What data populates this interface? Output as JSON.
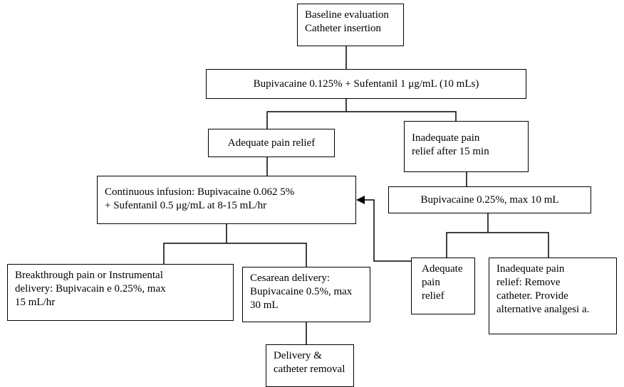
{
  "nodes": [
    {
      "lines": [
        "Baseline evaluation",
        "Catheter insertion"
      ]
    },
    {
      "lines": [
        "Bupivacaine 0.125% + Sufentanil 1 μg/mL (10 mLs)"
      ]
    },
    {
      "lines": [
        "Adequate pain relief"
      ]
    },
    {
      "lines": [
        "Inadequate pain",
        "relief after 15 min"
      ]
    },
    {
      "lines": [
        "Continuous infusion: Bupivacaine 0.062 5%",
        "+ Sufentanil 0.5 μg/mL at 8-15 mL/hr"
      ]
    },
    {
      "lines": [
        "Bupivacaine 0.25%, max 10 mL"
      ]
    },
    {
      "lines": [
        "Breakthrough pain or Instrumental",
        "delivery: Bupivacain e 0.25%, max",
        "15 mL/hr"
      ]
    },
    {
      "lines": [
        "Cesarean delivery:",
        "Bupivacaine 0.5%, max",
        "30 mL"
      ]
    },
    {
      "lines": [
        "Adequate",
        "pain",
        "relief"
      ]
    },
    {
      "lines": [
        "Inadequate pain",
        "relief: Remove",
        "catheter. Provide",
        "alternative analgesi a."
      ]
    },
    {
      "lines": [
        "Delivery &",
        "catheter removal"
      ]
    }
  ]
}
